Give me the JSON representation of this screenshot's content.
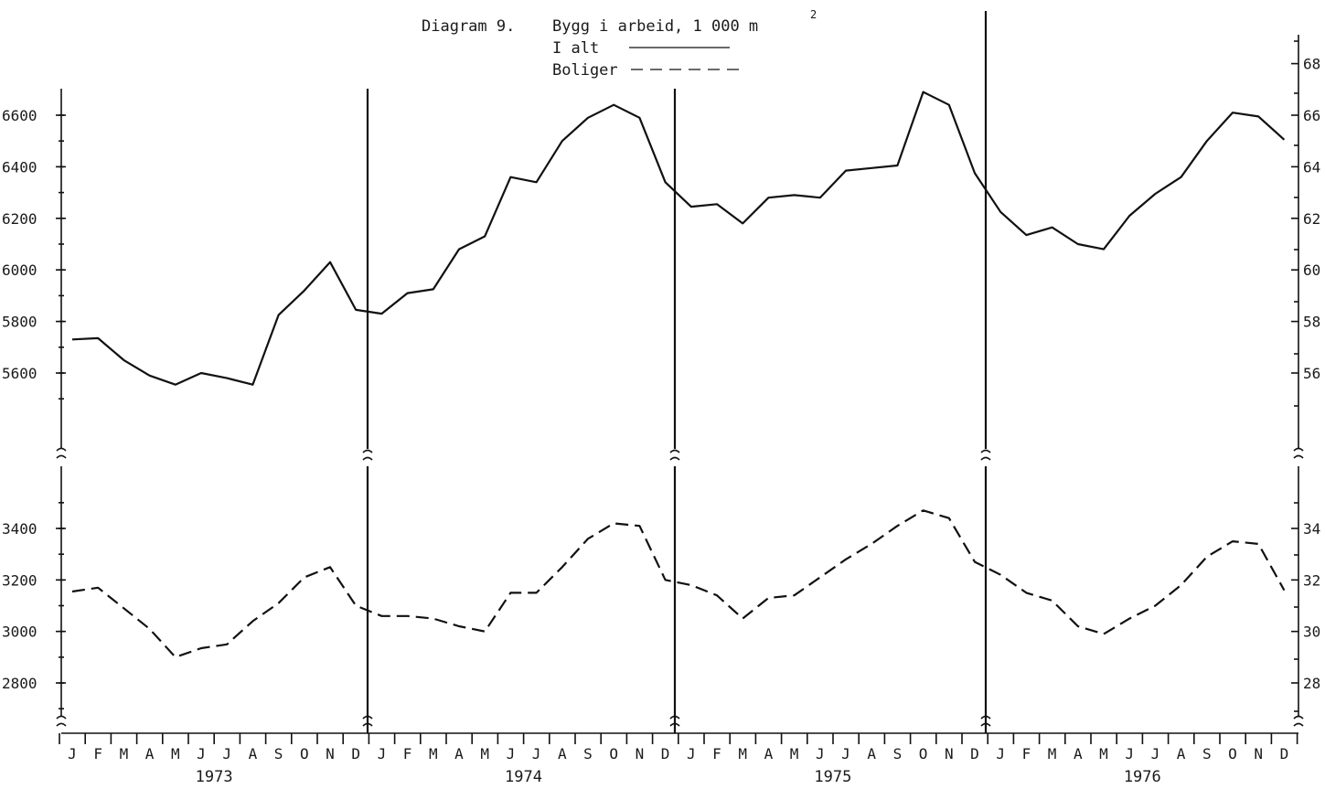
{
  "title": {
    "prefix": "Diagram 9.",
    "text": "Bygg i arbeid, 1 000 m",
    "superscript": "2"
  },
  "legend": {
    "items": [
      {
        "label": "I alt",
        "style": "solid"
      },
      {
        "label": "Boliger",
        "style": "dashed"
      }
    ]
  },
  "colors": {
    "line": "#111111",
    "background": "#ffffff"
  },
  "chart_data": {
    "type": "line",
    "x_axis": {
      "months": [
        "J",
        "F",
        "M",
        "A",
        "M",
        "J",
        "J",
        "A",
        "S",
        "O",
        "N",
        "D"
      ],
      "years": [
        "1973",
        "1974",
        "1975",
        "1976"
      ]
    },
    "upper_panel": {
      "ylim": [
        5400,
        6750
      ],
      "ticks": [
        "5600",
        "5800",
        "6000",
        "6200",
        "6400",
        "6600"
      ],
      "right_ticks": [
        "56",
        "58",
        "60",
        "62",
        "64",
        "66",
        "68"
      ]
    },
    "lower_panel": {
      "ylim": [
        2650,
        3500
      ],
      "ticks": [
        "2800",
        "3000",
        "3200",
        "3400"
      ],
      "right_ticks": [
        "28",
        "30",
        "32",
        "34"
      ]
    },
    "axis_breaks": true,
    "grid": false,
    "series": [
      {
        "name": "I alt",
        "style": "solid",
        "panel": "upper",
        "values": [
          5730,
          5735,
          5650,
          5590,
          5555,
          5600,
          5580,
          5555,
          5825,
          5920,
          6030,
          5845,
          5830,
          5910,
          5925,
          6080,
          6130,
          6360,
          6340,
          6500,
          6590,
          6640,
          6590,
          6340,
          6245,
          6255,
          6180,
          6280,
          6290,
          6280,
          6385,
          6395,
          6405,
          6690,
          6640,
          6375,
          6225,
          6135,
          6165,
          6100,
          6080,
          6210,
          6295,
          6360,
          6500,
          6610,
          6595,
          6505
        ]
      },
      {
        "name": "Boliger",
        "style": "dashed",
        "panel": "lower",
        "values": [
          3155,
          3170,
          3090,
          3010,
          2900,
          2935,
          2950,
          3040,
          3110,
          3210,
          3250,
          3100,
          3060,
          3060,
          3050,
          3020,
          3000,
          3150,
          3150,
          3250,
          3360,
          3420,
          3410,
          3200,
          3180,
          3140,
          3050,
          3130,
          3140,
          3210,
          3280,
          3340,
          3410,
          3470,
          3440,
          3270,
          3220,
          3150,
          3120,
          3020,
          2990,
          3050,
          3100,
          3180,
          3290,
          3350,
          3340,
          3160
        ]
      }
    ]
  }
}
